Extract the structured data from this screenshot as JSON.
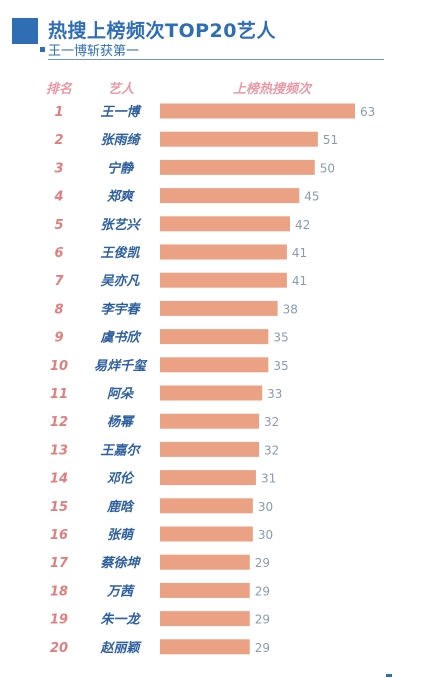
{
  "header": {
    "title": "热搜上榜频次TOP20艺人",
    "subtitle": "王一博斩获第一"
  },
  "columns": {
    "rank": "排名",
    "artist": "艺人",
    "count": "上榜热搜频次"
  },
  "colors": {
    "accent": "#2f6db5",
    "bar": "#eba284",
    "header_text": "#e89aa6",
    "rank_text": "#e07f7f",
    "name_text": "#2e5f9e",
    "value_text": "#8a9bb0"
  },
  "chart_data": {
    "type": "bar",
    "orientation": "horizontal",
    "title": "热搜上榜频次TOP20艺人",
    "subtitle": "王一博斩获第一",
    "ranks": [
      "1",
      "2",
      "3",
      "4",
      "5",
      "6",
      "7",
      "8",
      "9",
      "10",
      "11",
      "12",
      "13",
      "14",
      "15",
      "16",
      "17",
      "18",
      "19",
      "20"
    ],
    "categories": [
      "王一博",
      "张雨绮",
      "宁静",
      "郑爽",
      "张艺兴",
      "王俊凯",
      "吴亦凡",
      "李宇春",
      "虞书欣",
      "易烊千玺",
      "阿朵",
      "杨幂",
      "王嘉尔",
      "邓伦",
      "鹿晗",
      "张萌",
      "蔡徐坤",
      "万茜",
      "朱一龙",
      "赵丽颖"
    ],
    "values": [
      63,
      51,
      50,
      45,
      42,
      41,
      41,
      38,
      35,
      35,
      33,
      32,
      32,
      31,
      30,
      30,
      29,
      29,
      29,
      29
    ],
    "xlim": [
      0,
      63
    ]
  }
}
